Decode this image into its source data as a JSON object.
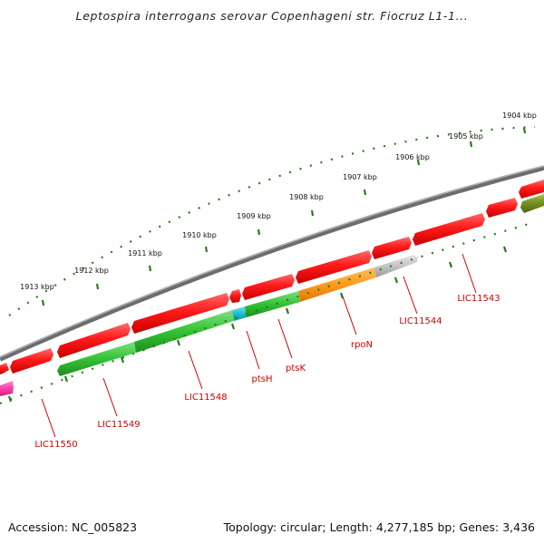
{
  "title": "Leptospira interrogans serovar Copenhageni str. Fiocruz L1-1...",
  "footer": {
    "accession": "Accession: NC_005823",
    "summary": "Topology: circular; Length: 4,277,185 bp; Genes: 3,436"
  },
  "scale_labels": [
    "1904 kbp",
    "1905 kbp",
    "1906 kbp",
    "1907 kbp",
    "1908 kbp",
    "1909 kbp",
    "1910 kbp",
    "1911 kbp",
    "1912 kbp",
    "1913 kbp"
  ],
  "gene_labels": [
    "LIC11543",
    "LIC11544",
    "rpoN",
    "ptsK",
    "ptsH",
    "LIC11548",
    "LIC11549",
    "LIC11550"
  ],
  "colors": {
    "backbone": "#8c8c8c",
    "forward_strand": "#ff1a1a",
    "scale_ticks": "#2a7a1a",
    "label_red": "#d40000",
    "green_gene": "#33c233",
    "orange_gene": "#ff9a1a",
    "cyan_gene": "#18c0d0",
    "gray_gene": "#c4c4c4",
    "olive_gene": "#6f8f1f",
    "pink_gene": "#ff3fa8"
  }
}
